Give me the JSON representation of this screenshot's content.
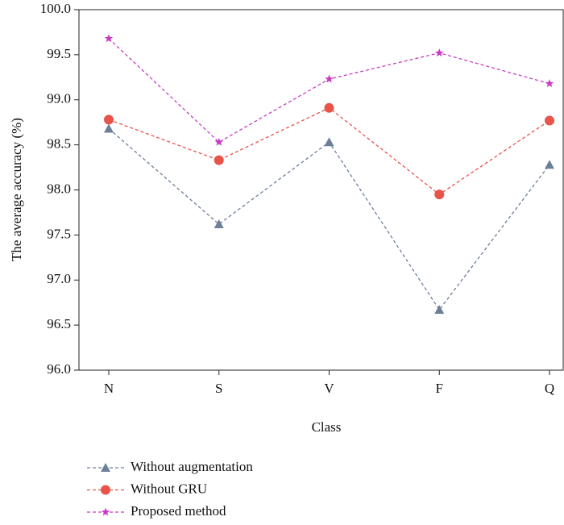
{
  "chart_data": {
    "type": "line",
    "x_label": "Class",
    "y_label": "The average accuracy (%)",
    "categories": [
      "N",
      "S",
      "V",
      "F",
      "Q"
    ],
    "series": [
      {
        "name": "Without augmentation",
        "color": "#6d7f98",
        "marker": "triangle",
        "values": [
          98.68,
          97.62,
          98.53,
          96.67,
          98.28
        ]
      },
      {
        "name": "Without GRU",
        "color": "#e8534a",
        "marker": "circle",
        "values": [
          98.78,
          98.33,
          98.91,
          97.95,
          98.77
        ]
      },
      {
        "name": "Proposed method",
        "color": "#c83cc6",
        "marker": "star",
        "values": [
          99.68,
          98.53,
          99.23,
          99.52,
          99.18
        ]
      }
    ],
    "ylim": [
      96,
      100
    ],
    "yticks": [
      {
        "value": 96,
        "label": "96.0"
      },
      96.5,
      {
        "value": 97,
        "label": "97.0"
      },
      97.5,
      {
        "value": 98,
        "label": "98.0"
      },
      98.5,
      {
        "value": 99,
        "label": "99.0"
      },
      99.5,
      {
        "value": 100,
        "label": "100.0"
      }
    ],
    "grid": false,
    "legend": "bottom-left"
  }
}
